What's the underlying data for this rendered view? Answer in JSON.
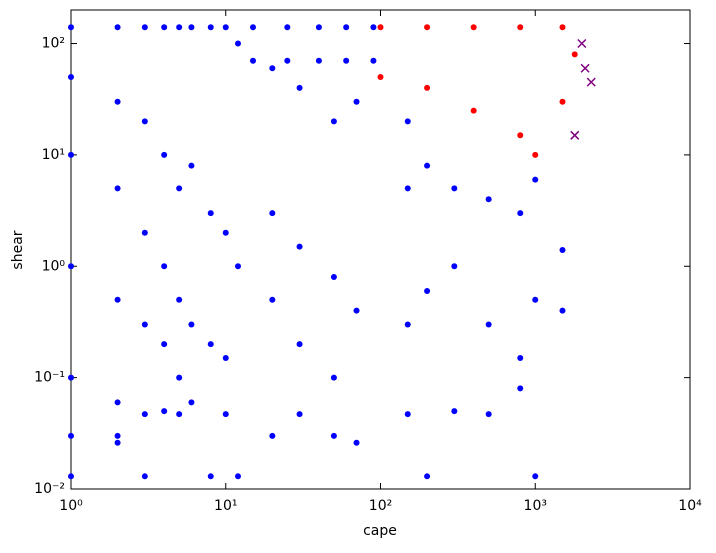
{
  "chart_data": {
    "type": "scatter",
    "x_label": "cape",
    "y_label": "shear",
    "xscale": "log",
    "yscale": "log",
    "xlim": [
      1,
      10000
    ],
    "ylim": [
      0.01,
      200
    ],
    "xticks": [
      {
        "value": 1,
        "label": "10⁰"
      },
      {
        "value": 10,
        "label": "10¹"
      },
      {
        "value": 100,
        "label": "10²"
      },
      {
        "value": 1000,
        "label": "10³"
      },
      {
        "value": 10000,
        "label": "10⁴"
      }
    ],
    "yticks": [
      {
        "value": 0.01,
        "label": "10⁻²"
      },
      {
        "value": 0.1,
        "label": "10⁻¹"
      },
      {
        "value": 1,
        "label": "10⁰"
      },
      {
        "value": 10,
        "label": "10¹"
      },
      {
        "value": 100,
        "label": "10²"
      }
    ],
    "series": [
      {
        "color": "#0000ff",
        "marker": "o",
        "x": [
          1,
          1,
          1,
          1,
          1,
          1,
          1,
          2,
          2,
          2,
          2,
          2,
          2,
          2,
          3,
          3,
          3,
          3,
          3,
          3,
          4,
          4,
          4,
          4,
          4,
          5,
          5,
          5,
          5,
          5,
          6,
          6,
          6,
          6,
          8,
          8,
          8,
          8,
          10,
          10,
          10,
          10,
          12,
          12,
          12,
          15,
          25,
          40,
          60,
          90,
          15,
          25,
          40,
          60,
          90,
          20,
          20,
          20,
          20,
          30,
          30,
          30,
          30,
          50,
          50,
          50,
          50,
          70,
          70,
          70,
          150,
          150,
          150,
          150,
          200,
          200,
          200,
          300,
          300,
          300,
          500,
          500,
          500,
          800,
          800,
          800,
          1000,
          1000,
          1000,
          1500,
          1500
        ],
        "values": [
          140,
          50,
          10,
          1,
          0.1,
          0.03,
          0.013,
          140,
          30,
          5,
          0.5,
          0.06,
          0.03,
          0.026,
          140,
          20,
          2,
          0.3,
          0.047,
          0.013,
          140,
          10,
          1,
          0.2,
          0.05,
          140,
          5,
          0.5,
          0.1,
          0.047,
          140,
          8,
          0.3,
          0.06,
          140,
          3,
          0.2,
          0.013,
          140,
          2,
          0.15,
          0.047,
          100,
          1,
          0.013,
          140,
          140,
          140,
          140,
          140,
          70,
          70,
          70,
          70,
          70,
          60,
          3,
          0.5,
          0.03,
          40,
          1.5,
          0.2,
          0.047,
          20,
          0.8,
          0.1,
          0.03,
          30,
          0.4,
          0.026,
          20,
          5,
          0.3,
          0.047,
          8,
          0.6,
          0.013,
          5,
          1,
          0.05,
          4,
          0.3,
          0.047,
          3,
          0.15,
          0.08,
          6,
          0.5,
          0.013,
          1.4,
          0.4
        ]
      },
      {
        "color": "#ff0000",
        "marker": "o",
        "x": [
          100,
          100,
          200,
          200,
          400,
          400,
          800,
          800,
          1000,
          1500,
          1500,
          1800
        ],
        "values": [
          140,
          50,
          140,
          40,
          140,
          25,
          140,
          15,
          10,
          140,
          30,
          80
        ]
      },
      {
        "color": "#800080",
        "marker": "x",
        "x": [
          2000,
          2300,
          1800,
          2100
        ],
        "values": [
          100,
          45,
          15,
          60
        ]
      }
    ]
  }
}
